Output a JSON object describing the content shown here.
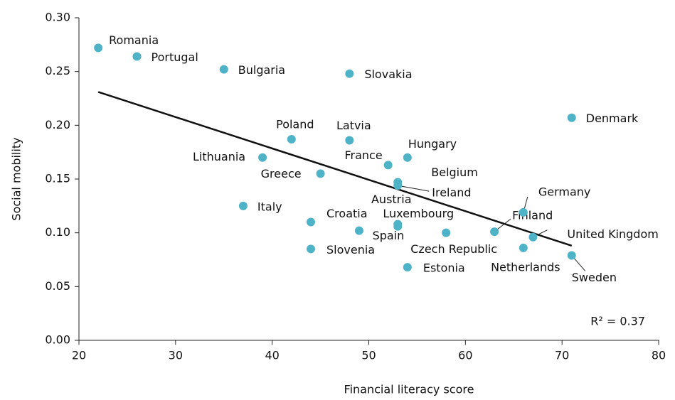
{
  "chart_data": {
    "type": "scatter",
    "x_label": "Financial literacy score",
    "y_label": "Social mobility",
    "annotation": "R² = 0.37",
    "color": "#4fb3c8",
    "labels": [
      "Romania",
      "Portugal",
      "Bulgaria",
      "Slovakia",
      "Denmark",
      "Poland",
      "Latvia",
      "Lithuania",
      "Hungary",
      "France",
      "Greece",
      "Belgium",
      "Ireland",
      "Italy",
      "Croatia",
      "Austria",
      "Luxembourg",
      "Spain",
      "Czech Republic",
      "Finland",
      "Germany",
      "United Kingdom",
      "Slovenia",
      "Netherlands",
      "Sweden",
      "Estonia"
    ],
    "x": [
      22,
      26,
      35,
      48,
      71,
      42,
      48,
      39,
      54,
      52,
      45,
      53,
      53,
      37,
      44,
      53,
      53,
      49,
      58,
      63,
      66,
      67,
      44,
      66,
      71,
      54
    ],
    "values": [
      0.272,
      0.264,
      0.252,
      0.248,
      0.207,
      0.187,
      0.186,
      0.17,
      0.17,
      0.163,
      0.155,
      0.147,
      0.144,
      0.125,
      0.11,
      0.108,
      0.106,
      0.102,
      0.1,
      0.101,
      0.119,
      0.096,
      0.085,
      0.086,
      0.079,
      0.068
    ],
    "trendline": {
      "x": [
        22,
        71
      ],
      "values": [
        0.231,
        0.088
      ],
      "color": "#111111"
    },
    "xlim": [
      20,
      80
    ],
    "xticks": [
      20,
      30,
      40,
      50,
      60,
      70,
      80
    ],
    "ylim": [
      0,
      0.3
    ],
    "yticks": [
      {
        "value": 0,
        "label": "0.00"
      },
      {
        "value": 0.05,
        "label": "0.05"
      },
      {
        "value": 0.1,
        "label": "0.10"
      },
      {
        "value": 0.15,
        "label": "0.15"
      },
      {
        "value": 0.2,
        "label": "0.20"
      },
      {
        "value": 0.25,
        "label": "0.25"
      },
      {
        "value": 0.3,
        "label": "0.30"
      }
    ]
  }
}
